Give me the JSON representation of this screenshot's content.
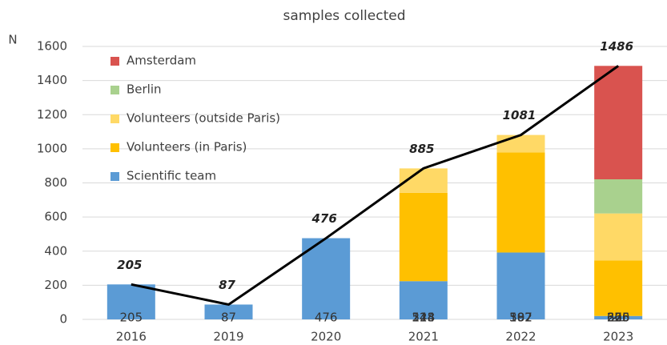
{
  "chart_data": {
    "type": "stacked-bar",
    "title": "samples collected",
    "y_label": "N",
    "categories": [
      "2016",
      "2019",
      "2020",
      "2021",
      "2022",
      "2023"
    ],
    "series": [
      {
        "name": "Scientific team",
        "color": "#5b9bd5",
        "values": [
          205,
          87,
          476,
          224,
          392,
          20
        ]
      },
      {
        "name": "Volunteers (in Paris)",
        "color": "#ffc000",
        "values": [
          null,
          null,
          null,
          518,
          587,
          326
        ]
      },
      {
        "name": "Volunteers (outside Paris)",
        "color": "#ffd966",
        "values": [
          null,
          null,
          null,
          143,
          102,
          275
        ]
      },
      {
        "name": "Berlin",
        "color": "#a9d18e",
        "values": [
          null,
          null,
          null,
          null,
          null,
          200
        ]
      },
      {
        "name": "Amsterdam",
        "color": "#d9534f",
        "values": [
          null,
          null,
          null,
          null,
          null,
          665
        ]
      }
    ],
    "totals": {
      "color": "#000000",
      "values": [
        205,
        87,
        476,
        885,
        1081,
        1486
      ]
    },
    "ylim": [
      0,
      1600
    ],
    "yticks": [
      0,
      200,
      400,
      600,
      800,
      1000,
      1200,
      1400,
      1600
    ],
    "grid": true,
    "legend": "top-left"
  }
}
